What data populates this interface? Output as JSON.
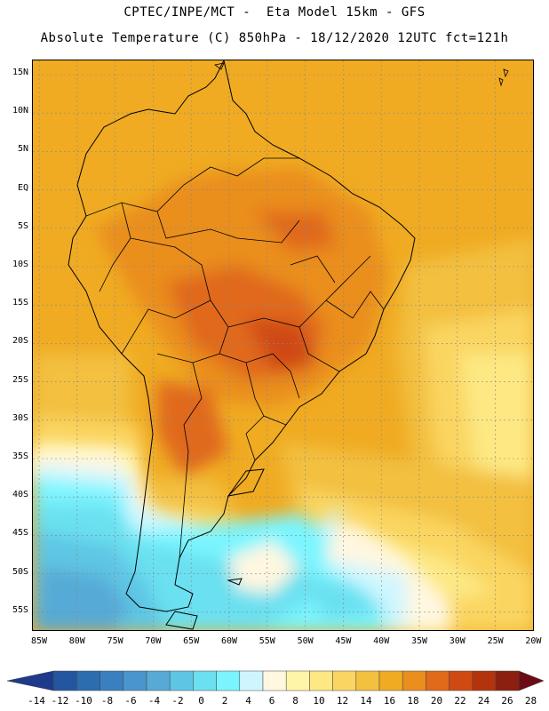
{
  "header": {
    "line1": "CPTEC/INPE/MCT -  Eta Model 15km - GFS",
    "line2": "Absolute Temperature (C) 850hPa - 18/12/2020 12UTC fct=121h"
  },
  "map": {
    "lat_labels": [
      "15N",
      "10N",
      "5N",
      "EQ",
      "5S",
      "10S",
      "15S",
      "20S",
      "25S",
      "30S",
      "35S",
      "40S",
      "45S",
      "50S",
      "55S"
    ],
    "lon_labels": [
      "85W",
      "80W",
      "75W",
      "70W",
      "65W",
      "60W",
      "55W",
      "50W",
      "45W",
      "40W",
      "35W",
      "30W",
      "25W",
      "20W"
    ],
    "gridlines": true,
    "field": "Absolute temperature at 850 hPa",
    "region": "South America"
  },
  "colorbar": {
    "labels": [
      "-14",
      "-12",
      "-10",
      "-8",
      "-6",
      "-4",
      "-2",
      "0",
      "2",
      "4",
      "6",
      "8",
      "10",
      "12",
      "14",
      "16",
      "18",
      "20",
      "22",
      "24",
      "26",
      "28"
    ],
    "colors": [
      "#1e3a8a",
      "#2456a0",
      "#2c6db0",
      "#3a80c0",
      "#4a95cc",
      "#57aad6",
      "#5ec6e4",
      "#6be0f0",
      "#7af5ff",
      "#cff6ff",
      "#fff7e0",
      "#fff5a8",
      "#fde883",
      "#fad561",
      "#f3c040",
      "#f0ab22",
      "#ea8e1e",
      "#e0691a",
      "#cf4a12",
      "#b3330d",
      "#8c2010",
      "#6b0c14"
    ]
  }
}
